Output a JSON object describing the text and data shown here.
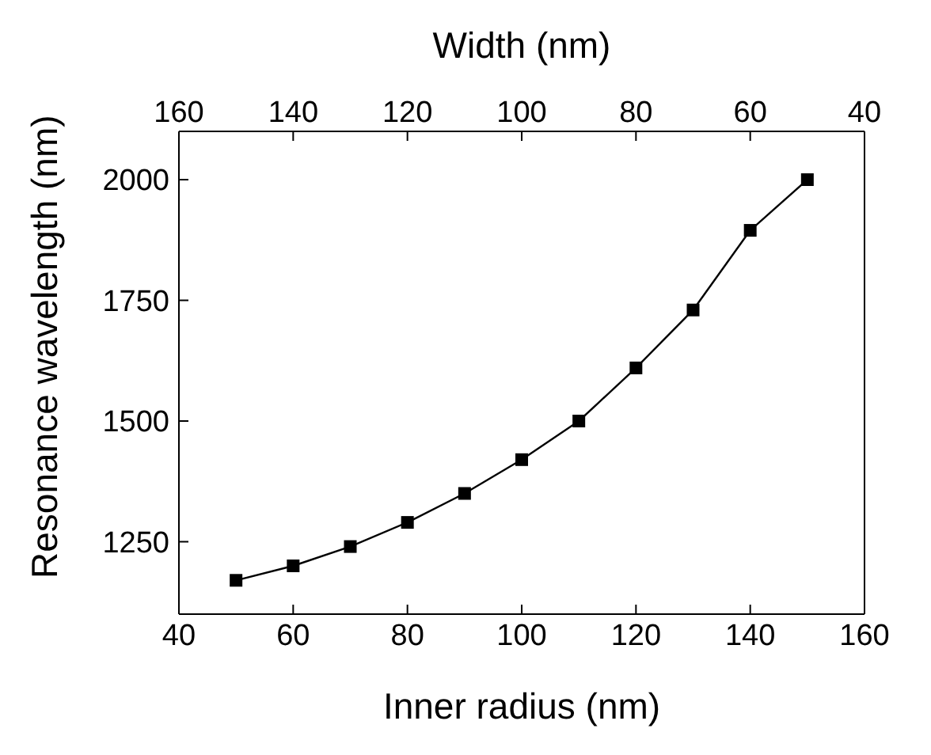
{
  "chart_data": {
    "type": "line",
    "xlabel": "Inner radius (nm)",
    "ylabel": "Resonance wavelength (nm)",
    "x2label": "Width (nm)",
    "x": [
      50,
      60,
      70,
      80,
      90,
      100,
      110,
      120,
      130,
      140,
      150
    ],
    "series": [
      {
        "color": "#000000",
        "values": [
          1170,
          1200,
          1240,
          1290,
          1350,
          1420,
          1500,
          1610,
          1730,
          1895,
          2000
        ]
      }
    ],
    "xlim": [
      40,
      160
    ],
    "xticks": [
      40,
      60,
      80,
      100,
      120,
      140,
      160
    ],
    "x2lim": [
      160,
      40
    ],
    "x2ticks": [
      160,
      140,
      120,
      100,
      80,
      60,
      40
    ],
    "ylim": [
      1100,
      2100
    ],
    "yticks": [
      1250,
      1500,
      1750,
      2000
    ],
    "marker": "square",
    "line_style": "solid",
    "grid": false
  }
}
